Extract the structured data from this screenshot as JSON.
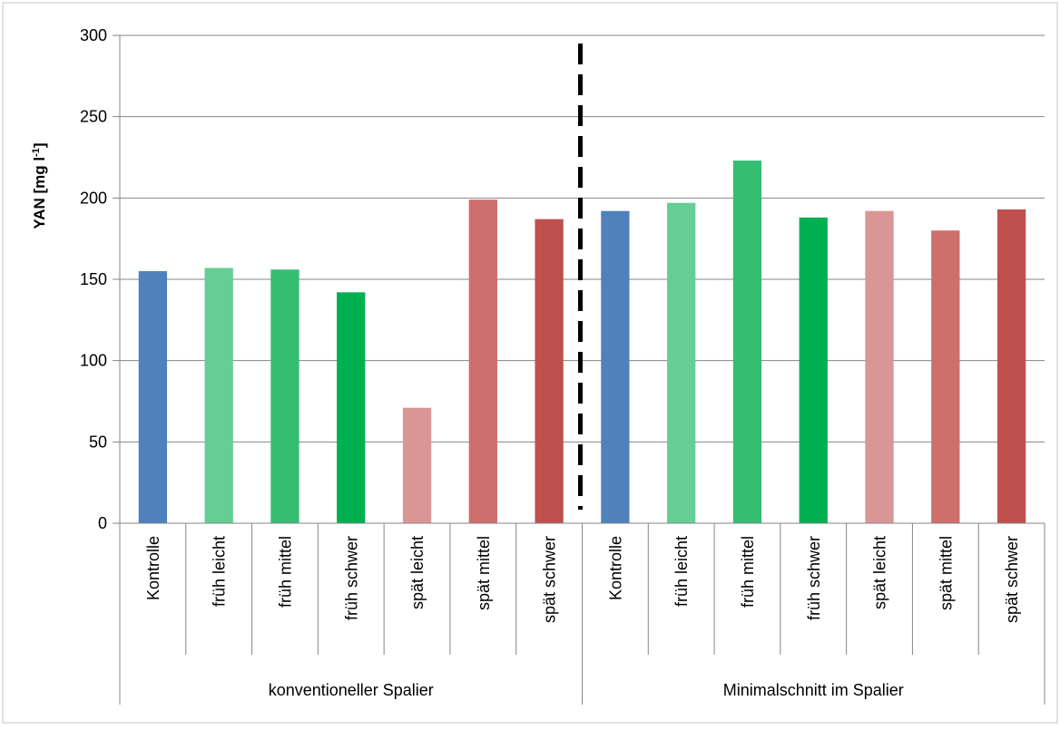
{
  "chart_data": {
    "type": "bar",
    "ylabel_main": "YAN [mg l",
    "ylabel_sup": "-1",
    "ylabel_end": "]",
    "ylim": [
      0,
      300
    ],
    "yticks": [
      0,
      50,
      100,
      150,
      200,
      250,
      300
    ],
    "grid": true,
    "legend": "none",
    "groups": [
      {
        "label": "konventioneller Spalier",
        "categories": [
          "Kontrolle",
          "früh leicht",
          "früh mittel",
          "früh schwer",
          "spät leicht",
          "spät mittel",
          "spät schwer"
        ],
        "values": [
          155,
          157,
          156,
          142,
          71,
          199,
          187
        ]
      },
      {
        "label": "Minimalschnitt im Spalier",
        "categories": [
          "Kontrolle",
          "früh leicht",
          "früh mittel",
          "früh schwer",
          "spät leicht",
          "spät mittel",
          "spät schwer"
        ],
        "values": [
          192,
          197,
          223,
          188,
          192,
          180,
          193
        ]
      }
    ],
    "category_colors": {
      "Kontrolle": "#4f81bd",
      "früh leicht": "#66cd94",
      "früh mittel": "#35bd72",
      "früh schwer": "#00b050",
      "spät leicht": "#da9694",
      "spät mittel": "#cd706d",
      "spät schwer": "#c0504d"
    },
    "divider": "dashed line between groups"
  }
}
